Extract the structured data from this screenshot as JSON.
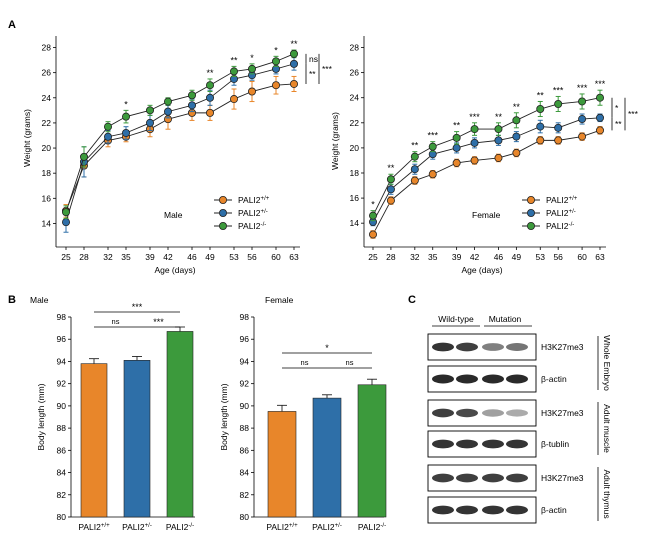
{
  "figure": {
    "panel_labels": [
      "A",
      "B",
      "C"
    ],
    "colors": {
      "wt": "#E8862A",
      "het": "#2E6FA8",
      "ko": "#3C9A3C",
      "axis": "#000000"
    },
    "legend_labels": [
      {
        "base": "PALI2",
        "sup": "+/+"
      },
      {
        "base": "PALI2",
        "sup": "+/-"
      },
      {
        "base": "PALI2",
        "sup": "-/-"
      }
    ]
  },
  "chart_data": [
    {
      "panel": "A",
      "type": "line",
      "title": "",
      "sex_label": "Male",
      "xlabel": "Age (days)",
      "ylabel": "Weight (grams)",
      "x": [
        25,
        28,
        32,
        35,
        39,
        42,
        46,
        49,
        53,
        56,
        60,
        63
      ],
      "ylim": [
        13,
        28.6
      ],
      "yticks": [
        14,
        16,
        18,
        20,
        22,
        24,
        26,
        28
      ],
      "series": [
        {
          "name": "PALI2+/+",
          "key": "wt",
          "values": [
            15.0,
            18.6,
            20.6,
            20.9,
            21.5,
            22.3,
            22.8,
            22.8,
            23.9,
            24.5,
            25.0,
            25.1
          ],
          "errors": [
            0.5,
            0.9,
            0.5,
            0.4,
            0.6,
            0.8,
            0.6,
            0.6,
            0.8,
            0.8,
            0.7,
            0.6
          ]
        },
        {
          "name": "PALI2+/-",
          "key": "het",
          "values": [
            14.1,
            18.9,
            20.9,
            21.2,
            22.0,
            22.9,
            23.4,
            24.0,
            25.5,
            25.8,
            26.3,
            26.7
          ],
          "errors": [
            0.8,
            1.2,
            0.5,
            0.5,
            0.6,
            0.5,
            0.5,
            0.6,
            0.5,
            0.4,
            0.4,
            0.5
          ]
        },
        {
          "name": "PALI2-/-",
          "key": "ko",
          "values": [
            14.9,
            19.3,
            21.7,
            22.5,
            23.0,
            23.7,
            24.2,
            25.0,
            26.1,
            26.3,
            26.9,
            27.5
          ],
          "errors": [
            0.5,
            0.8,
            0.4,
            0.5,
            0.4,
            0.3,
            0.4,
            0.5,
            0.4,
            0.4,
            0.4,
            0.3
          ]
        }
      ],
      "annotations": [
        {
          "x": 35,
          "text": "*"
        },
        {
          "x": 49,
          "text": "**"
        },
        {
          "x": 53,
          "text": "**"
        },
        {
          "x": 56,
          "text": "*"
        },
        {
          "x": 60,
          "text": "*"
        },
        {
          "x": 63,
          "text": "**"
        }
      ],
      "brackets": [
        {
          "from": 27.5,
          "to": 26.7,
          "text": "ns",
          "level": 0
        },
        {
          "from": 26.7,
          "to": 25.1,
          "text": "**",
          "level": 0
        },
        {
          "from": 27.5,
          "to": 25.1,
          "text": "***",
          "level": 1
        }
      ],
      "legend_position": "bottom-right"
    },
    {
      "panel": "A",
      "type": "line",
      "title": "",
      "sex_label": "Female",
      "xlabel": "Age (days)",
      "ylabel": "Weight (grams)",
      "x": [
        25,
        28,
        32,
        35,
        39,
        42,
        46,
        49,
        53,
        56,
        60,
        63
      ],
      "ylim": [
        12.5,
        28.6
      ],
      "yticks": [
        14,
        16,
        18,
        20,
        22,
        24,
        26,
        28
      ],
      "series": [
        {
          "name": "PALI2+/+",
          "key": "wt",
          "values": [
            13.1,
            15.8,
            17.4,
            17.9,
            18.8,
            19.0,
            19.2,
            19.6,
            20.6,
            20.6,
            20.9,
            21.4
          ],
          "errors": [
            0.3,
            0.3,
            0.3,
            0.3,
            0.3,
            0.3,
            0.3,
            0.3,
            0.3,
            0.3,
            0.3,
            0.3
          ]
        },
        {
          "name": "PALI2+/-",
          "key": "het",
          "values": [
            14.1,
            16.7,
            18.3,
            19.5,
            20.0,
            20.4,
            20.6,
            20.9,
            21.7,
            21.6,
            22.3,
            22.4
          ],
          "errors": [
            0.3,
            0.4,
            0.4,
            0.4,
            0.4,
            0.4,
            0.4,
            0.4,
            0.5,
            0.4,
            0.4,
            0.3
          ]
        },
        {
          "name": "PALI2-/-",
          "key": "ko",
          "values": [
            14.6,
            17.5,
            19.3,
            20.1,
            20.8,
            21.5,
            21.5,
            22.2,
            23.1,
            23.5,
            23.7,
            24.0
          ],
          "errors": [
            0.4,
            0.4,
            0.4,
            0.4,
            0.5,
            0.5,
            0.5,
            0.6,
            0.6,
            0.6,
            0.6,
            0.6
          ]
        }
      ],
      "annotations": [
        {
          "x": 25,
          "text": "*"
        },
        {
          "x": 28,
          "text": "**"
        },
        {
          "x": 32,
          "text": "**"
        },
        {
          "x": 35,
          "text": "***"
        },
        {
          "x": 39,
          "text": "**"
        },
        {
          "x": 42,
          "text": "***"
        },
        {
          "x": 46,
          "text": "**"
        },
        {
          "x": 49,
          "text": "**"
        },
        {
          "x": 53,
          "text": "**"
        },
        {
          "x": 56,
          "text": "***"
        },
        {
          "x": 60,
          "text": "***"
        },
        {
          "x": 63,
          "text": "***"
        }
      ],
      "brackets": [
        {
          "from": 24.0,
          "to": 22.4,
          "text": "*",
          "level": 0
        },
        {
          "from": 22.4,
          "to": 21.4,
          "text": "**",
          "level": 0
        },
        {
          "from": 24.0,
          "to": 21.4,
          "text": "***",
          "level": 1
        }
      ],
      "legend_position": "bottom-right"
    },
    {
      "panel": "B",
      "type": "bar",
      "title": "Male",
      "xlabel": "",
      "ylabel": "Body length (mm)",
      "categories": [
        "PALI2+/+",
        "PALI2+/-",
        "PALI2-/-"
      ],
      "category_keys": [
        "wt",
        "het",
        "ko"
      ],
      "values": [
        93.8,
        94.1,
        96.7
      ],
      "errors": [
        0.45,
        0.35,
        0.4
      ],
      "ylim": [
        80,
        98
      ],
      "yticks": [
        80,
        82,
        84,
        86,
        88,
        90,
        92,
        94,
        96,
        98
      ],
      "significance": [
        {
          "a": 0,
          "b": 2,
          "text": "***",
          "level": 1
        },
        {
          "a": 0,
          "b": 1,
          "text": "ns",
          "level": 0
        },
        {
          "a": 1,
          "b": 2,
          "text": "***",
          "level": 0
        }
      ]
    },
    {
      "panel": "B",
      "type": "bar",
      "title": "Female",
      "xlabel": "",
      "ylabel": "Body length (mm)",
      "categories": [
        "PALI2+/+",
        "PALI2+/-",
        "PALI2-/-"
      ],
      "category_keys": [
        "wt",
        "het",
        "ko"
      ],
      "values": [
        89.5,
        90.7,
        91.9
      ],
      "errors": [
        0.55,
        0.3,
        0.5
      ],
      "ylim": [
        80,
        98
      ],
      "yticks": [
        80,
        82,
        84,
        86,
        88,
        90,
        92,
        94,
        96,
        98
      ],
      "significance": [
        {
          "a": 0,
          "b": 2,
          "text": "*",
          "level": 1
        },
        {
          "a": 0,
          "b": 1,
          "text": "ns",
          "level": 0
        },
        {
          "a": 1,
          "b": 2,
          "text": "ns",
          "level": 0
        }
      ]
    }
  ],
  "western": {
    "groups": [
      "Wild-type",
      "Mutation"
    ],
    "rows": [
      {
        "label": "H3K27me3",
        "intensities": [
          0.85,
          0.8,
          0.5,
          0.55
        ]
      },
      {
        "label": "β-actin",
        "intensities": [
          0.9,
          0.9,
          0.9,
          0.9
        ]
      },
      {
        "label": "H3K27me3",
        "intensities": [
          0.8,
          0.75,
          0.35,
          0.3
        ]
      },
      {
        "label": "β-tublin",
        "intensities": [
          0.85,
          0.85,
          0.85,
          0.85
        ]
      },
      {
        "label": "H3K27me3",
        "intensities": [
          0.8,
          0.8,
          0.8,
          0.8
        ]
      },
      {
        "label": "β-actin",
        "intensities": [
          0.85,
          0.85,
          0.85,
          0.85
        ]
      }
    ],
    "tissues": [
      "Whole Embryo",
      "Adult muscle",
      "Adult thymus"
    ]
  }
}
